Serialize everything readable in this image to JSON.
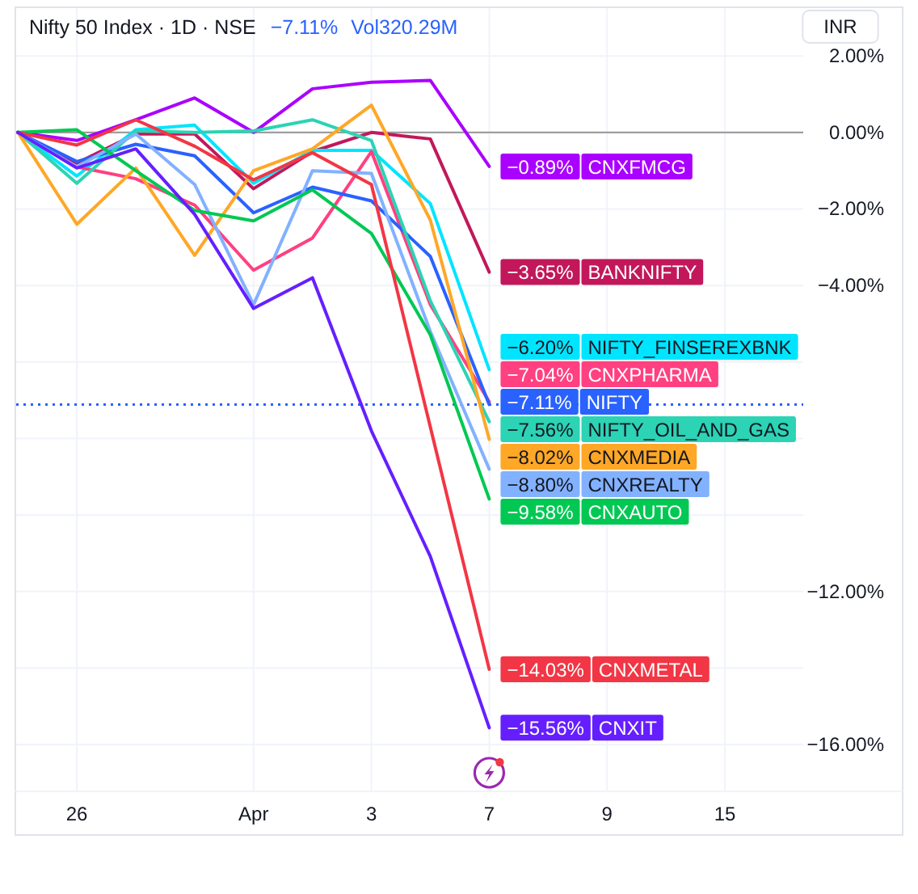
{
  "chart_data": {
    "type": "line",
    "title": "Nifty 50 Index · 1D · NSE",
    "subtitle": "−7.11%",
    "annotations": [
      "Vol320.29M",
      "INR"
    ],
    "categories": [
      null,
      "26",
      null,
      null,
      "Apr",
      null,
      "3",
      null,
      "7",
      null,
      "9",
      null,
      "15",
      null
    ],
    "ylim": [
      -17.2,
      3.25
    ],
    "yticks": [
      {
        "value": 2,
        "label": "2.00%"
      },
      {
        "value": 0,
        "label": "0.00%"
      },
      {
        "value": -2,
        "label": "−2.00%"
      },
      {
        "value": -4,
        "label": "−4.00%"
      },
      {
        "value": -6,
        "label": null
      },
      {
        "value": -8,
        "label": null
      },
      {
        "value": -10,
        "label": null
      },
      {
        "value": -12,
        "label": "−12.00%"
      },
      {
        "value": -14,
        "label": null
      },
      {
        "value": -16,
        "label": "−16.00%"
      }
    ],
    "grid": true,
    "legend": "right",
    "ref_lines": [
      {
        "axis": "y",
        "value": 0,
        "color": "#9e9e9e",
        "line_style": "solid"
      },
      {
        "axis": "y",
        "value": -7.11,
        "color": "#2962ff",
        "line_style": "dotted"
      }
    ],
    "series": [
      {
        "name": "CNXFMCG",
        "color": "#aa00ff",
        "values": [
          0,
          -0.21,
          0.33,
          0.9,
          0,
          1.14,
          1.31,
          1.36,
          -0.89,
          null,
          null,
          null,
          null,
          null
        ],
        "value_labels": [
          null,
          null,
          null,
          null,
          null,
          null,
          null,
          null,
          "−0.89%",
          null,
          null,
          null,
          null,
          null
        ]
      },
      {
        "name": "BANKNIFTY",
        "color": "#c2185b",
        "values": [
          0,
          -0.8,
          -0.04,
          -0.04,
          -1.47,
          -0.5,
          0,
          -0.17,
          -3.65,
          null,
          null,
          null,
          null,
          null
        ],
        "value_labels": [
          null,
          null,
          null,
          null,
          null,
          null,
          null,
          null,
          "−3.65%",
          null,
          null,
          null,
          null,
          null
        ]
      },
      {
        "name": "NIFTY_FINSEREXBNK",
        "color": "#00e5ff",
        "values": [
          0,
          -1.14,
          0.07,
          0.19,
          -1.33,
          -0.47,
          -0.47,
          -1.86,
          -6.2,
          null,
          null,
          null,
          null,
          null
        ],
        "value_labels": [
          null,
          null,
          null,
          null,
          null,
          null,
          null,
          null,
          "−6.20%",
          null,
          null,
          null,
          null,
          null
        ]
      },
      {
        "name": "CNXPHARMA",
        "color": "#ff4081",
        "values": [
          0,
          -0.9,
          -1.21,
          -1.9,
          -3.6,
          -2.76,
          -0.5,
          -4.5,
          -7.04,
          null,
          null,
          null,
          null,
          null
        ],
        "value_labels": [
          null,
          null,
          null,
          null,
          null,
          null,
          null,
          null,
          "−7.04%",
          null,
          null,
          null,
          null,
          null
        ]
      },
      {
        "name": "NIFTY",
        "color": "#2962ff",
        "values": [
          0,
          -0.76,
          -0.31,
          -0.61,
          -2.1,
          -1.43,
          -1.79,
          -3.24,
          -7.11,
          null,
          null,
          null,
          null,
          null
        ],
        "value_labels": [
          null,
          null,
          null,
          null,
          null,
          null,
          null,
          null,
          "−7.11%",
          null,
          null,
          null,
          null,
          null
        ]
      },
      {
        "name": "NIFTY_OIL_AND_GAS",
        "color": "#2cd3b4",
        "values": [
          0,
          -1.33,
          0.04,
          0,
          0.04,
          0.33,
          -0.21,
          -4.4,
          -7.56,
          null,
          null,
          null,
          null,
          null
        ],
        "value_labels": [
          null,
          null,
          null,
          null,
          null,
          null,
          null,
          null,
          "−7.56%",
          null,
          null,
          null,
          null,
          null
        ]
      },
      {
        "name": "CNXMEDIA",
        "color": "#ffa726",
        "values": [
          0,
          -2.4,
          -0.93,
          -3.21,
          -1.0,
          -0.43,
          0.71,
          -2.29,
          -8.02,
          null,
          null,
          null,
          null,
          null
        ],
        "value_labels": [
          null,
          null,
          null,
          null,
          null,
          null,
          null,
          null,
          "−8.02%",
          null,
          null,
          null,
          null,
          null
        ]
      },
      {
        "name": "CNXREALTY",
        "color": "#82b1ff",
        "values": [
          0,
          -0.9,
          -0.04,
          -1.36,
          -4.5,
          -1.0,
          -1.07,
          -5.2,
          -8.8,
          null,
          null,
          null,
          null,
          null
        ],
        "value_labels": [
          null,
          null,
          null,
          null,
          null,
          null,
          null,
          null,
          "−8.80%",
          null,
          null,
          null,
          null,
          null
        ]
      },
      {
        "name": "CNXAUTO",
        "color": "#00c853",
        "values": [
          0,
          0.07,
          -1.0,
          -2.04,
          -2.31,
          -1.5,
          -2.64,
          -5.29,
          -9.58,
          null,
          null,
          null,
          null,
          null
        ],
        "value_labels": [
          null,
          null,
          null,
          null,
          null,
          null,
          null,
          null,
          "−9.58%",
          null,
          null,
          null,
          null,
          null
        ]
      },
      {
        "name": "CNXMETAL",
        "color": "#f23645",
        "values": [
          0,
          -0.33,
          0.33,
          -0.36,
          -1.24,
          -0.53,
          -1.36,
          -7.7,
          -14.03,
          null,
          null,
          null,
          null,
          null
        ],
        "value_labels": [
          null,
          null,
          null,
          null,
          null,
          null,
          null,
          null,
          "−14.03%",
          null,
          null,
          null,
          null,
          null
        ]
      },
      {
        "name": "CNXIT",
        "color": "#651fff",
        "values": [
          0,
          -0.93,
          -0.43,
          -2.14,
          -4.6,
          -3.8,
          -7.8,
          -11.08,
          -15.56,
          null,
          null,
          null,
          null,
          null
        ],
        "value_labels": [
          null,
          null,
          null,
          null,
          null,
          null,
          null,
          null,
          "−15.56%",
          null,
          null,
          null,
          null,
          null
        ]
      }
    ]
  }
}
